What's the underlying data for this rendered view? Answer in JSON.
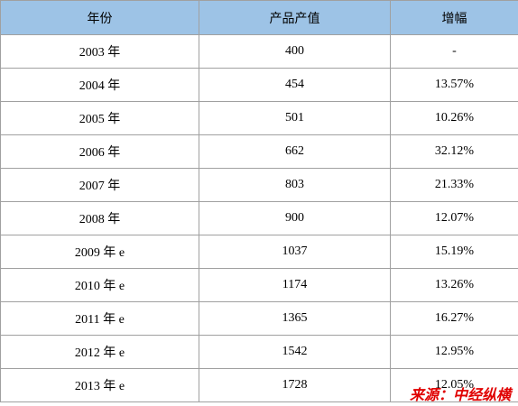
{
  "table": {
    "header": [
      "年份",
      "产品产值",
      "增幅"
    ],
    "rows": [
      [
        "2003 年",
        "400",
        "-"
      ],
      [
        "2004 年",
        "454",
        "13.57%"
      ],
      [
        "2005 年",
        "501",
        "10.26%"
      ],
      [
        "2006 年",
        "662",
        "32.12%"
      ],
      [
        "2007 年",
        "803",
        "21.33%"
      ],
      [
        "2008 年",
        "900",
        "12.07%"
      ],
      [
        "2009 年 e",
        "1037",
        "15.19%"
      ],
      [
        "2010 年 e",
        "1174",
        "13.26%"
      ],
      [
        "2011 年 e",
        "1365",
        "16.27%"
      ],
      [
        "2012 年 e",
        "1542",
        "12.95%"
      ],
      [
        "2013 年 e",
        "1728",
        "12.05%"
      ]
    ]
  },
  "source": "来源：中经纵横"
}
